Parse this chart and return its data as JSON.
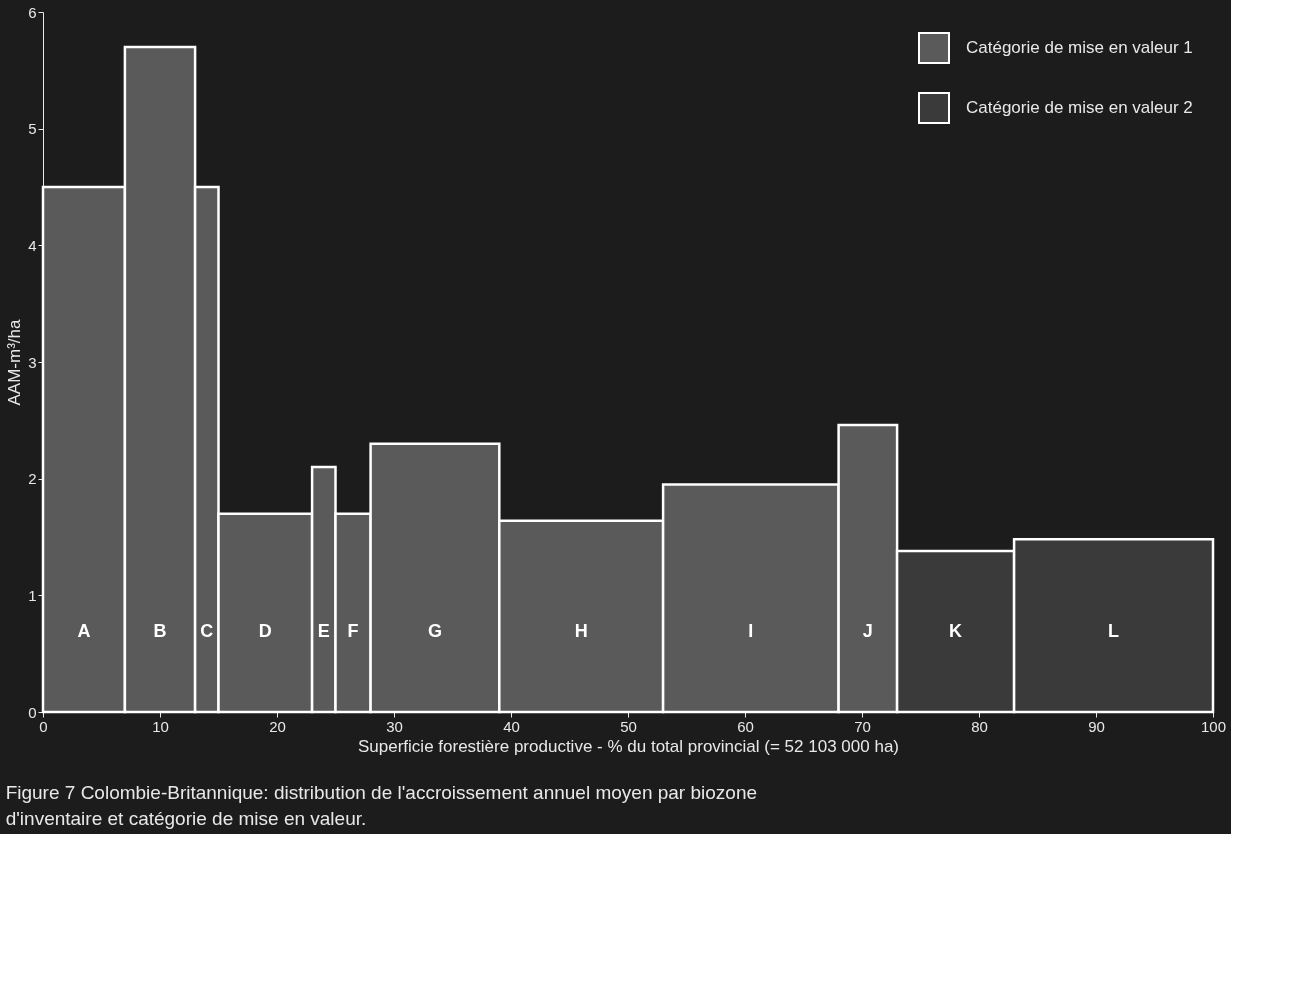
{
  "chart_data": {
    "type": "histogram",
    "bins": [
      0,
      7,
      13,
      15,
      23,
      25,
      28,
      39,
      53,
      68,
      73,
      83,
      100
    ],
    "series": [
      {
        "name": "Catégorie de mise en valeur 1",
        "color": "#5a5a5a",
        "values": [
          4.5,
          5.7,
          4.5,
          1.7,
          2.1,
          1.7,
          2.3,
          1.64,
          1.95,
          2.46,
          null,
          null
        ]
      },
      {
        "name": "Catégorie de mise en valeur 2",
        "color": "#3a3a3a",
        "values": [
          null,
          null,
          null,
          null,
          null,
          null,
          null,
          null,
          null,
          null,
          1.38,
          1.48
        ]
      }
    ],
    "xlabel": "Superficie forestière productive - % du total provincial  (= 52 103 000 ha)",
    "ylabel": "AAM-m³/ha",
    "xlim": [
      0,
      100
    ],
    "xticks": [
      0,
      10,
      20,
      30,
      40,
      50,
      60,
      70,
      80,
      90,
      100
    ],
    "ylim": [
      0,
      6
    ],
    "yticks": [
      0,
      1,
      2,
      3,
      4,
      5,
      6
    ],
    "legend": "top right",
    "grid": false,
    "annotations": [
      "A",
      "B",
      "C",
      "D",
      "E",
      "F",
      "G",
      "H",
      "I",
      "J",
      "K",
      "L",
      "Figure 7    Colombie-Britannique: distribution de l'accroissement annuel moyen par biozone d'inventaire et catégorie de mise en valeur."
    ]
  }
}
